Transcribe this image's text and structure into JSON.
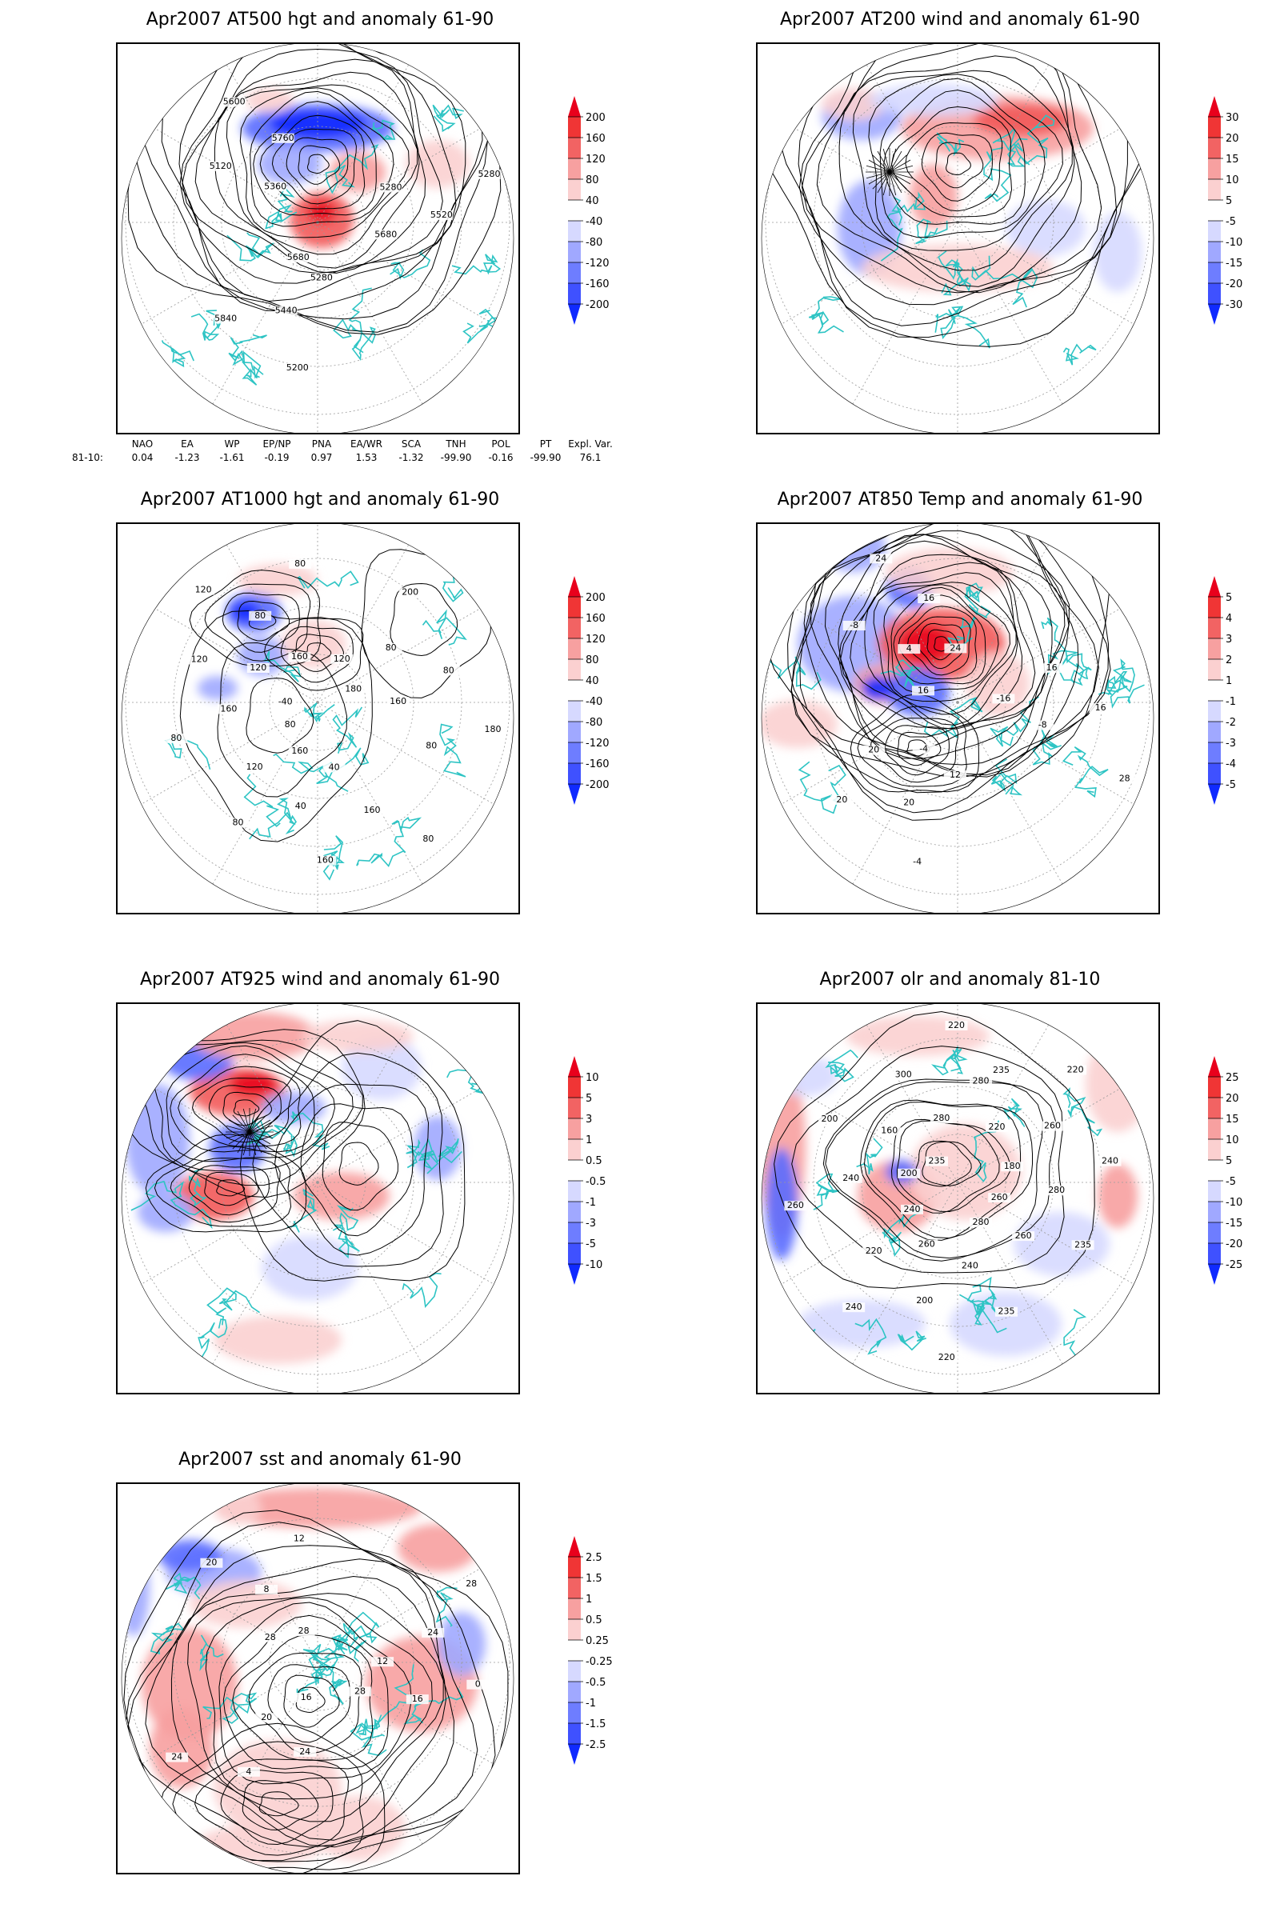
{
  "panels": [
    {
      "id": "p1",
      "title": "Apr2007 AT500 hgt and anomaly 61-90",
      "colorbar": [
        "200",
        "160",
        "120",
        "80",
        "40",
        "-40",
        "-80",
        "-120",
        "-160",
        "-200"
      ],
      "contour_labels": [
        "5280",
        "5280",
        "5120",
        "5200",
        "5280",
        "5360",
        "5440",
        "5520",
        "5600",
        "5680",
        "5680",
        "5760",
        "5840"
      ],
      "kind": "hgt"
    },
    {
      "id": "p2",
      "title": "Apr2007 AT200 wind and anomaly 61-90",
      "colorbar": [
        "30",
        "20",
        "15",
        "10",
        "5",
        "-5",
        "-10",
        "-15",
        "-20",
        "-30"
      ],
      "contour_labels": [],
      "kind": "wind"
    },
    {
      "id": "p3",
      "title": "Apr2007 AT1000 hgt and anomaly 61-90",
      "colorbar": [
        "200",
        "160",
        "120",
        "80",
        "40",
        "-40",
        "-80",
        "-120",
        "-160",
        "-200"
      ],
      "contour_labels": [
        "80",
        "80",
        "120",
        "160",
        "160",
        "200",
        "-40",
        "40",
        "80",
        "120",
        "160",
        "180",
        "120",
        "40",
        "80",
        "120",
        "160",
        "160",
        "80",
        "80",
        "180",
        "160",
        "120",
        "80",
        "80",
        "80"
      ],
      "kind": "hgt"
    },
    {
      "id": "p4",
      "title": "Apr2007 AT850 Temp and anomaly 61-90",
      "colorbar": [
        "5",
        "4",
        "3",
        "2",
        "1",
        "-1",
        "-2",
        "-3",
        "-4",
        "-5"
      ],
      "contour_labels": [
        "16",
        "12",
        "16",
        "-8",
        "-4",
        "-16",
        "4",
        "20",
        "16",
        "24",
        "-4",
        "-8",
        "16",
        "20",
        "28",
        "24",
        "20"
      ],
      "kind": "temp"
    },
    {
      "id": "p5",
      "title": "Apr2007 AT925 wind and anomaly 61-90",
      "colorbar": [
        "10",
        "5",
        "3",
        "1",
        "0.5",
        "-0.5",
        "-1",
        "-3",
        "-5",
        "-10"
      ],
      "contour_labels": [],
      "kind": "wind"
    },
    {
      "id": "p6",
      "title": "Apr2007 olr and anomaly 81-10",
      "colorbar": [
        "25",
        "20",
        "15",
        "10",
        "5",
        "-5",
        "-10",
        "-15",
        "-20",
        "-25"
      ],
      "contour_labels": [
        "235",
        "260",
        "280",
        "220",
        "240",
        "235",
        "220",
        "200",
        "240",
        "260",
        "200",
        "220",
        "180",
        "160",
        "200",
        "240",
        "235",
        "260",
        "280",
        "300",
        "240",
        "260",
        "280",
        "220",
        "235",
        "220",
        "240",
        "260",
        "280"
      ],
      "kind": "olr"
    },
    {
      "id": "p7",
      "title": "Apr2007 sst and anomaly 61-90",
      "colorbar": [
        "2.5",
        "1.5",
        "1",
        "0.5",
        "0.25",
        "-0.25",
        "-0.5",
        "-1",
        "-1.5",
        "-2.5"
      ],
      "contour_labels": [
        "28",
        "28",
        "24",
        "24",
        "20",
        "16",
        "12",
        "8",
        "4",
        "0",
        "28",
        "20",
        "16",
        "12",
        "24",
        "28"
      ],
      "kind": "sst"
    }
  ],
  "indices": {
    "headers": [
      "NAO",
      "EA",
      "WP",
      "EP/NP",
      "PNA",
      "EA/WR",
      "SCA",
      "TNH",
      "POL",
      "PT",
      "Expl. Var."
    ],
    "row_label": "81-10:",
    "values": [
      "0.04",
      "-1.23",
      "-1.61",
      "-0.19",
      "0.97",
      "1.53",
      "-1.32",
      "-99.90",
      "-0.16",
      "-99.90",
      "76.1"
    ]
  },
  "colors": {
    "coast": "#2ec4c4",
    "red": "#e8001c",
    "blue": "#0f2aff",
    "contour": "#000000"
  }
}
